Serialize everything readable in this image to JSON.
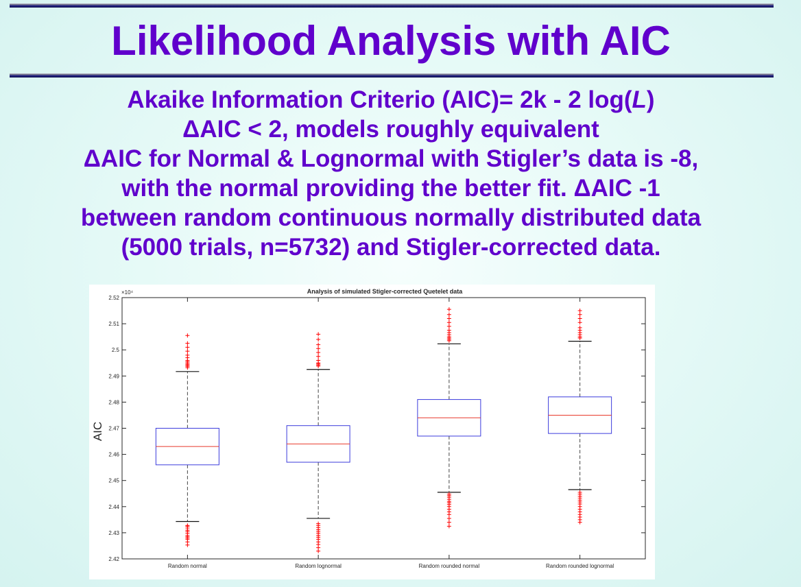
{
  "slide": {
    "title": "Likelihood Analysis with AIC",
    "lines": [
      {
        "pre": "Akaike Information Criterio (AIC)= 2k - 2 log(",
        "italic": "L",
        "post": ")"
      },
      {
        "pre": "ΔAIC < 2, models roughly equivalent",
        "italic": "",
        "post": ""
      },
      {
        "pre": "ΔAIC for Normal & Lognormal with Stigler’s data is -8,",
        "italic": "",
        "post": ""
      },
      {
        "pre": "with the normal providing the better fit.  ΔAIC -1",
        "italic": "",
        "post": ""
      },
      {
        "pre": "between random continuous normally distributed data",
        "italic": "",
        "post": ""
      },
      {
        "pre": "(5000 trials, n=5732) and Stigler-corrected data.",
        "italic": "",
        "post": ""
      }
    ]
  },
  "chart_data": {
    "type": "boxplot",
    "title": "Analysis of simulated Stigler-corrected Quetelet data",
    "ylabel": "AIC",
    "y_exponent_label": "×10⁴",
    "ylim": [
      2.42,
      2.52
    ],
    "yticks": [
      2.42,
      2.43,
      2.44,
      2.45,
      2.46,
      2.47,
      2.48,
      2.49,
      2.5,
      2.51,
      2.52
    ],
    "ytick_labels": [
      "2.42",
      "2.43",
      "2.44",
      "2.45",
      "2.46",
      "2.47",
      "2.48",
      "2.49",
      "2.5",
      "2.51",
      "2.52"
    ],
    "categories": [
      "Random normal",
      "Random lognormal",
      "Random rounded normal",
      "Random rounded lognormal"
    ],
    "boxes": [
      {
        "q1": 2.456,
        "median": 2.463,
        "q3": 2.47,
        "whisker_low": 2.4343,
        "whisker_high": 2.4917,
        "outliers": [
          2.4253,
          2.4265,
          2.4275,
          2.428,
          2.4285,
          2.429,
          2.4298,
          2.4305,
          2.431,
          2.4318,
          2.4325,
          2.4328,
          2.4932,
          2.4937,
          2.4941,
          2.4945,
          2.495,
          2.4955,
          2.496,
          2.497,
          2.498,
          2.4995,
          2.501,
          2.5025,
          2.5055
        ]
      },
      {
        "q1": 2.457,
        "median": 2.464,
        "q3": 2.471,
        "whisker_low": 2.4355,
        "whisker_high": 2.4925,
        "outliers": [
          2.423,
          2.4243,
          2.4255,
          2.4265,
          2.4275,
          2.4283,
          2.429,
          2.4298,
          2.4305,
          2.4312,
          2.432,
          2.4328,
          2.4335,
          2.4938,
          2.4942,
          2.4946,
          2.495,
          2.496,
          2.4975,
          2.499,
          2.5005,
          2.502,
          2.504,
          2.506
        ]
      },
      {
        "q1": 2.467,
        "median": 2.474,
        "q3": 2.481,
        "whisker_low": 2.4455,
        "whisker_high": 2.5023,
        "outliers": [
          2.4325,
          2.434,
          2.4355,
          2.437,
          2.438,
          2.439,
          2.44,
          2.4408,
          2.4415,
          2.442,
          2.4428,
          2.4436,
          2.4442,
          2.4448,
          2.5035,
          2.504,
          2.5045,
          2.505,
          2.5058,
          2.5066,
          2.5075,
          2.509,
          2.5105,
          2.512,
          2.5135,
          2.5155
        ]
      },
      {
        "q1": 2.468,
        "median": 2.475,
        "q3": 2.482,
        "whisker_low": 2.4465,
        "whisker_high": 2.5033,
        "outliers": [
          2.434,
          2.435,
          2.436,
          2.437,
          2.438,
          2.439,
          2.44,
          2.441,
          2.4418,
          2.4425,
          2.4433,
          2.444,
          2.4448,
          2.4455,
          2.5045,
          2.505,
          2.5058,
          2.5066,
          2.5075,
          2.5085,
          2.5105,
          2.512,
          2.5135,
          2.515
        ]
      }
    ],
    "colors": {
      "box": "#3b3bdc",
      "median": "#e8392b",
      "whisker": "#444444",
      "outlier": "#ff0000",
      "axis": "#262626",
      "grid_text": "#262626"
    }
  }
}
